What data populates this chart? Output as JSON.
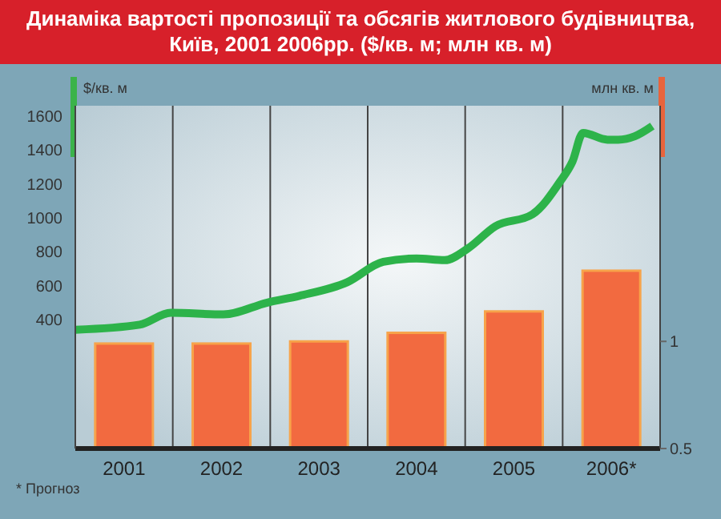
{
  "chart_data": {
    "type": "bar",
    "title": "Динаміка вартості пропозиції та обсягів житлового будівництва, Київ, 2001   2006рр. ($/кв. м; млн кв. м)",
    "xlim": [
      2001,
      2007
    ],
    "xticks": [
      {
        "value": 2001,
        "label": null
      },
      {
        "value": 2001.5,
        "label": "2001"
      },
      {
        "value": 2002,
        "label": null
      },
      {
        "value": 2002.5,
        "label": "2002"
      },
      {
        "value": 2003,
        "label": null
      },
      {
        "value": 2003.5,
        "label": "2003"
      },
      {
        "value": 2004,
        "label": null
      },
      {
        "value": 2004.5,
        "label": "2004"
      },
      {
        "value": 2005,
        "label": null
      },
      {
        "value": 2005.5,
        "label": "2005"
      },
      {
        "value": 2006,
        "label": null
      },
      {
        "value": 2006.5,
        "label": "2006*"
      },
      {
        "value": 2007,
        "label": null
      }
    ],
    "ylabel": "$/кв. м",
    "y2label": "млн кв. м",
    "ylim": [
      -360,
      1660
    ],
    "yticks": [
      400,
      600,
      800,
      1000,
      1200,
      1400,
      1600
    ],
    "y2lim": [
      0.5,
      2.1
    ],
    "y2ticks": [
      0.5,
      1
    ],
    "grid": "x",
    "series": [
      {
        "axis": "y2",
        "color": "#f26a40",
        "x": [
          2001.5,
          2002.5,
          2003.5,
          2004.5,
          2005.5,
          2006.5
        ],
        "values": [
          0.99,
          0.99,
          1.0,
          1.04,
          1.14,
          1.33
        ]
      },
      {
        "type": "line",
        "axis": "y",
        "color": "#2db34a",
        "x": [
          2001.0,
          2001.66,
          2001.98,
          2002.52,
          2002.97,
          2003.3,
          2003.79,
          2004.16,
          2004.5,
          2004.79,
          2005.03,
          2005.31,
          2005.69,
          2005.97,
          2006.1,
          2006.21,
          2006.46,
          2006.57,
          2006.74,
          2006.92
        ],
        "values": [
          340,
          370,
          440,
          430,
          500,
          540,
          620,
          740,
          760,
          750,
          820,
          950,
          1020,
          1210,
          1330,
          1500,
          1460,
          1460,
          1480,
          1540
        ]
      }
    ],
    "annotations": [
      "* Прогноз"
    ]
  }
}
